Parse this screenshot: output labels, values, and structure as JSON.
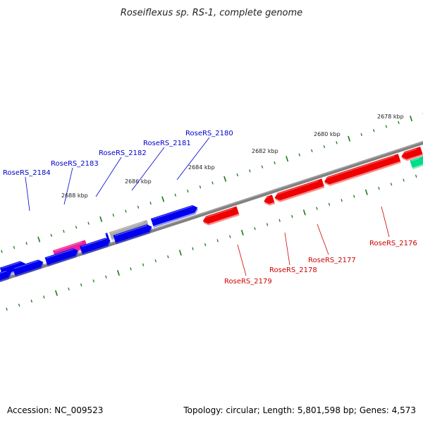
{
  "title": "Roseiflexus sp. RS-1, complete genome",
  "footer": {
    "accession": "Accession: NC_009523",
    "summary": "Topology: circular; Length: 5,801,598 bp; Genes: 4,573"
  },
  "colors": {
    "backbone": "#808080",
    "tick": "#1a7a1a",
    "forward_gene": "#0000ee",
    "reverse_gene": "#ee0000",
    "rna_gene": "#ee2299",
    "pseudo_gene": "#aaaaaa",
    "other_gene": "#00dd88",
    "forward_label": "#0000cc",
    "reverse_label": "#cc0000"
  },
  "scale": {
    "ticks": [
      "2678 kbp",
      "2680 kbp",
      "2682 kbp",
      "2684 kbp",
      "2686 kbp",
      "2688 kbp"
    ]
  },
  "genes": {
    "forward": [
      "RoseRS_2180",
      "RoseRS_2181",
      "RoseRS_2182",
      "RoseRS_2183",
      "RoseRS_2184"
    ],
    "reverse": [
      "RoseRS_2176",
      "RoseRS_2177",
      "RoseRS_2178",
      "RoseRS_2179"
    ]
  }
}
